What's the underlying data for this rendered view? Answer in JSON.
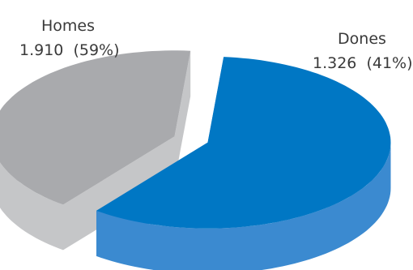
{
  "chart_data": {
    "type": "pie",
    "style": "3d exploded",
    "slices": [
      {
        "label": "Homes",
        "value": 1910,
        "value_text": "1.910",
        "percent_text": "(59%)",
        "color": "#0077c4",
        "side_color": "#3b8ad0"
      },
      {
        "label": "Dones",
        "value": 1326,
        "value_text": "1.326",
        "percent_text": "(41%)",
        "color": "#a9aaad",
        "side_color": "#c5c6c8"
      }
    ]
  }
}
